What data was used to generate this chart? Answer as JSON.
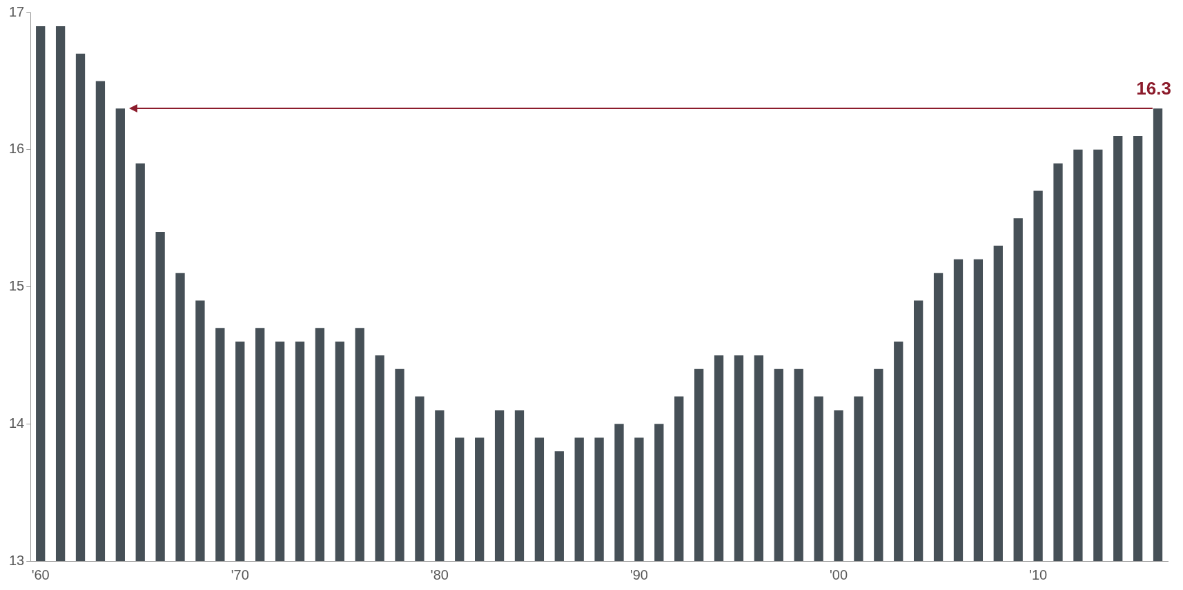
{
  "chart_data": {
    "type": "bar",
    "categories": [
      "'60",
      null,
      null,
      null,
      null,
      null,
      null,
      null,
      null,
      null,
      "'70",
      null,
      null,
      null,
      null,
      null,
      null,
      null,
      null,
      null,
      "'80",
      null,
      null,
      null,
      null,
      null,
      null,
      null,
      null,
      null,
      "'90",
      null,
      null,
      null,
      null,
      null,
      null,
      null,
      null,
      null,
      "'00",
      null,
      null,
      null,
      null,
      null,
      null,
      null,
      null,
      null,
      "'10",
      null,
      null,
      null,
      null,
      null,
      null
    ],
    "values": [
      16.9,
      16.9,
      16.7,
      16.5,
      16.3,
      15.9,
      15.4,
      15.1,
      14.9,
      14.7,
      14.6,
      14.7,
      14.6,
      14.6,
      14.7,
      14.6,
      14.7,
      14.5,
      14.4,
      14.2,
      14.1,
      13.9,
      13.9,
      14.1,
      14.1,
      13.9,
      13.8,
      13.9,
      13.9,
      14.0,
      13.9,
      14.0,
      14.2,
      14.4,
      14.5,
      14.5,
      14.5,
      14.4,
      14.4,
      14.2,
      14.1,
      14.2,
      14.4,
      14.6,
      14.9,
      15.1,
      15.2,
      15.2,
      15.3,
      15.5,
      15.7,
      15.9,
      16.0,
      16.0,
      16.1,
      16.1,
      16.3
    ],
    "color": "#465057",
    "ylim": [
      13,
      17
    ],
    "yticks": [
      13,
      14,
      15,
      16,
      17
    ],
    "grid": false,
    "legend": false,
    "annotations": [
      {
        "text": "16.3",
        "y": 16.3
      }
    ]
  }
}
